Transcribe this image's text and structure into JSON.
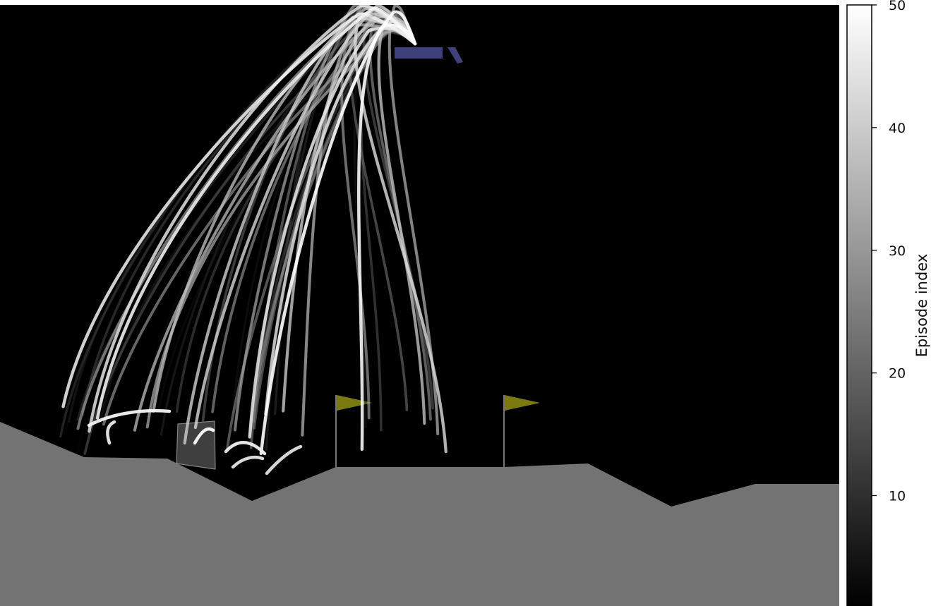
{
  "chart_data": {
    "type": "line",
    "title": "",
    "xlabel": "",
    "ylabel": "",
    "colors": {
      "sky": "#000000",
      "terrain": "#737373",
      "flag": "#7a7a10",
      "flag_pole": "#9a9a9a",
      "lander_ghost": "#4b4b90",
      "trajectory": "#ffffff"
    },
    "colorbar": {
      "label": "Episode index",
      "colormap": "gray",
      "vmin": 1,
      "vmax": 50,
      "ticks": [
        10,
        20,
        30,
        40,
        50
      ],
      "tick_labels": [
        "10",
        "20",
        "30",
        "40",
        "50"
      ]
    },
    "legend": "none",
    "grid": false,
    "episodes": 50
  }
}
